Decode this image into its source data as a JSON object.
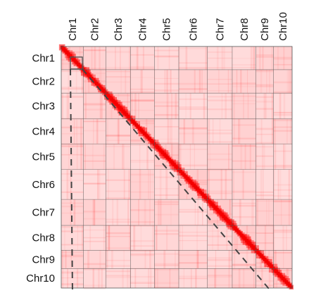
{
  "chart_data": {
    "type": "heatmap",
    "title": "",
    "xlabel": "",
    "ylabel": "",
    "chromosomes": [
      "Chr1",
      "Chr2",
      "Chr3",
      "Chr4",
      "Chr5",
      "Chr6",
      "Chr7",
      "Chr8",
      "Chr9",
      "Chr10"
    ],
    "relative_lengths": [
      1.0,
      1.01,
      1.11,
      1.08,
      1.1,
      1.29,
      1.12,
      1.07,
      0.79,
      0.84
    ],
    "colors": {
      "low": "#fff2f2",
      "high": "#e60000",
      "grid": "#555555",
      "highlight_box": "#555555",
      "dashed_line": "#444444"
    },
    "annotations": {
      "zoom_box_on": "Chr1",
      "dashed_guides": true
    }
  }
}
